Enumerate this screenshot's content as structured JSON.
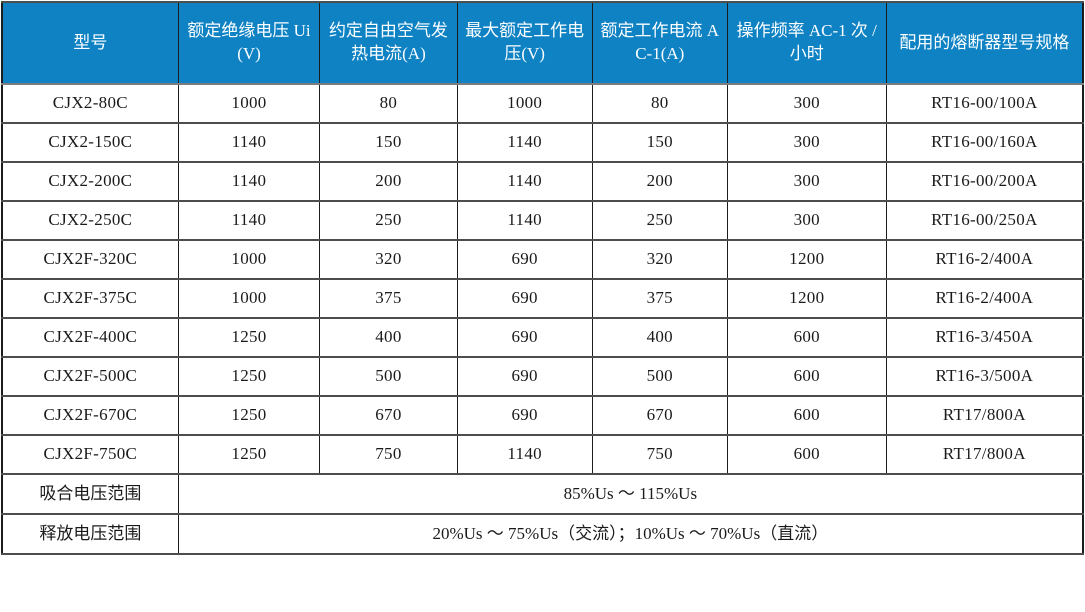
{
  "table": {
    "title_semantic": "contactor-specification-table",
    "colors": {
      "header_background": "#0f82c4",
      "header_text": "#ffffff",
      "body_text": "#1a1a1a",
      "horizontal_border": "#4d4d4d",
      "vertical_border": "#1c1c1c"
    },
    "headers": [
      {
        "id": "model",
        "label": "型号"
      },
      {
        "id": "rated-insulation-voltage",
        "label": "额定绝缘电压 Ui(V)"
      },
      {
        "id": "conventional-free-air-thermal-current",
        "label": "约定自由空气发热电流(A)"
      },
      {
        "id": "max-rated-working-voltage",
        "label": "最大额定工作电压(V)"
      },
      {
        "id": "rated-working-current-ac1",
        "label": "额定工作电流 AC-1(A)"
      },
      {
        "id": "operating-frequency-ac1",
        "label": "操作频率 AC-1 次 / 小时"
      },
      {
        "id": "matching-fuse-model-spec",
        "label": "配用的熔断器型号规格"
      }
    ],
    "rows": [
      [
        "CJX2-80C",
        "1000",
        "80",
        "1000",
        "80",
        "300",
        "RT16-00/100A"
      ],
      [
        "CJX2-150C",
        "1140",
        "150",
        "1140",
        "150",
        "300",
        "RT16-00/160A"
      ],
      [
        "CJX2-200C",
        "1140",
        "200",
        "1140",
        "200",
        "300",
        "RT16-00/200A"
      ],
      [
        "CJX2-250C",
        "1140",
        "250",
        "1140",
        "250",
        "300",
        "RT16-00/250A"
      ],
      [
        "CJX2F-320C",
        "1000",
        "320",
        "690",
        "320",
        "1200",
        "RT16-2/400A"
      ],
      [
        "CJX2F-375C",
        "1000",
        "375",
        "690",
        "375",
        "1200",
        "RT16-2/400A"
      ],
      [
        "CJX2F-400C",
        "1250",
        "400",
        "690",
        "400",
        "600",
        "RT16-3/450A"
      ],
      [
        "CJX2F-500C",
        "1250",
        "500",
        "690",
        "500",
        "600",
        "RT16-3/500A"
      ],
      [
        "CJX2F-670C",
        "1250",
        "670",
        "690",
        "670",
        "600",
        "RT17/800A"
      ],
      [
        "CJX2F-750C",
        "1250",
        "750",
        "1140",
        "750",
        "600",
        "RT17/800A"
      ]
    ],
    "footer_rows": [
      {
        "id": "pull-in-voltage-range",
        "label": "吸合电压范围",
        "value": "85%Us ～ 115%Us"
      },
      {
        "id": "release-voltage-range",
        "label": "释放电压范围",
        "value": "20%Us ～ 75%Us（交流）；10%Us ～ 70%Us（直流）"
      }
    ]
  }
}
